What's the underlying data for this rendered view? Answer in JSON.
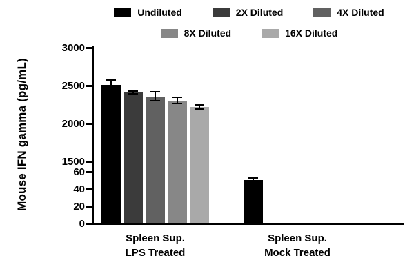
{
  "chart_data": {
    "type": "bar",
    "title": "",
    "ylabel": "Mouse IFN gamma (pg/mL)",
    "xlabel": "",
    "axis_break": true,
    "upper_range": [
      1500,
      3000
    ],
    "lower_range": [
      0,
      60
    ],
    "upper_ticks": [
      3000,
      2500,
      2000,
      1500
    ],
    "lower_ticks": [
      60,
      40,
      20,
      0
    ],
    "grid": false,
    "legend_position": "top",
    "groups": [
      {
        "label_line1": "Spleen Sup.",
        "label_line2": "LPS Treated"
      },
      {
        "label_line1": "Spleen Sup.",
        "label_line2": "Mock Treated"
      }
    ],
    "series": [
      {
        "name": "Undiluted",
        "color": "#000000",
        "values": [
          2500,
          50
        ],
        "errors": [
          65,
          2
        ]
      },
      {
        "name": "2X Diluted",
        "color": "#3b3b3b",
        "values": [
          2400,
          0
        ],
        "errors": [
          20,
          0
        ]
      },
      {
        "name": "4X Diluted",
        "color": "#616161",
        "values": [
          2350,
          0
        ],
        "errors": [
          55,
          0
        ]
      },
      {
        "name": "8X Diluted",
        "color": "#878787",
        "values": [
          2295,
          0
        ],
        "errors": [
          40,
          0
        ]
      },
      {
        "name": "16X Diluted",
        "color": "#a9a9a9",
        "values": [
          2210,
          0
        ],
        "errors": [
          25,
          0
        ]
      }
    ]
  }
}
